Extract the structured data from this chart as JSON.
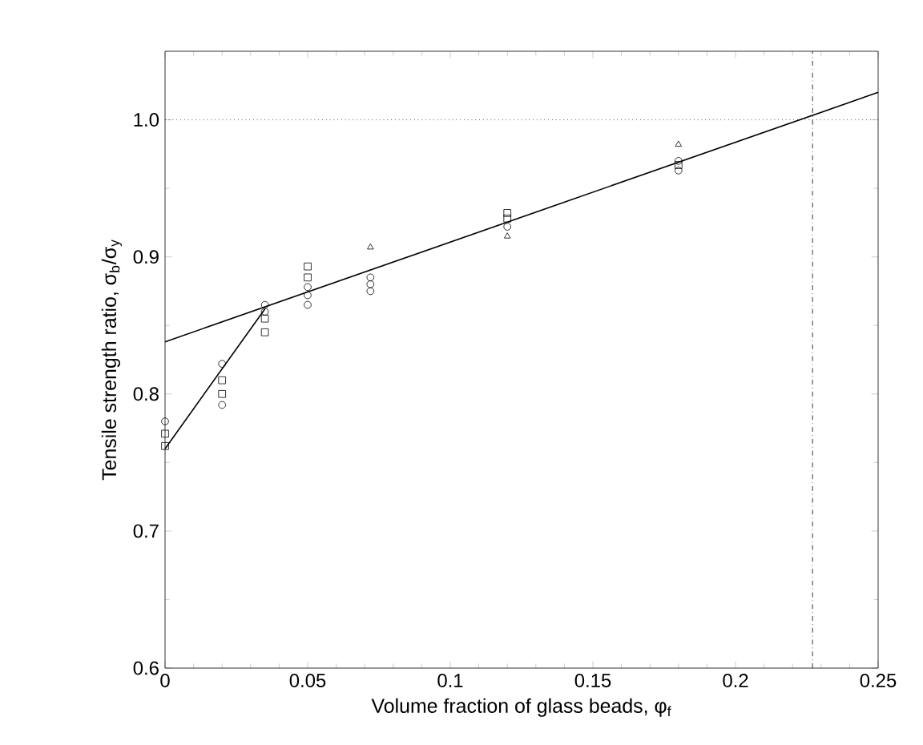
{
  "chart_data": {
    "type": "scatter",
    "xlabel": "Volume fraction of glass beads, φ$_{f}$",
    "ylabel": "Tensile strength ratio, σ$_{b}$/σ$_{y}$",
    "xlim": [
      0,
      0.25
    ],
    "ylim": [
      0.6,
      1.05
    ],
    "xticks": [
      0,
      0.05,
      0.1,
      0.15,
      0.2,
      0.25
    ],
    "yticks": [
      0.6,
      0.7,
      0.8,
      0.9,
      {
        "value": 1.0,
        "label": "1.0"
      }
    ],
    "grid": false,
    "series": [
      {
        "marker": "circle",
        "color": "#000000",
        "x": [
          0,
          0.02,
          0.02,
          0.035,
          0.035,
          0.05,
          0.05,
          0.05,
          0.072,
          0.072,
          0.072,
          0.12,
          0.18,
          0.18
        ],
        "values": [
          0.78,
          0.822,
          0.792,
          0.865,
          0.86,
          0.878,
          0.872,
          0.865,
          0.885,
          0.88,
          0.875,
          0.922,
          0.97,
          0.963
        ]
      },
      {
        "marker": "square",
        "color": "#000000",
        "x": [
          0,
          0,
          0.02,
          0.02,
          0.035,
          0.035,
          0.05,
          0.05,
          0.12,
          0.12,
          0.18
        ],
        "values": [
          0.771,
          0.762,
          0.81,
          0.8,
          0.855,
          0.845,
          0.893,
          0.885,
          0.932,
          0.928,
          0.967
        ]
      },
      {
        "marker": "triangle",
        "color": "#000000",
        "x": [
          0.072,
          0.12,
          0.18
        ],
        "values": [
          0.907,
          0.915,
          0.982
        ]
      },
      {
        "type": "line",
        "marker": "none",
        "line_style": "solid",
        "color": "#000000",
        "x": [
          0,
          0.035
        ],
        "values": [
          0.76,
          0.862
        ]
      },
      {
        "type": "line",
        "marker": "none",
        "line_style": "solid",
        "color": "#000000",
        "x": [
          0,
          0.25
        ],
        "values": [
          0.838,
          1.02
        ]
      }
    ],
    "ref_lines": [
      {
        "axis": "y",
        "value": 1.0,
        "line_style": "dotted",
        "color": "#000000"
      },
      {
        "axis": "x",
        "value": 0.227,
        "line_style": "dashdotted",
        "color": "#000000"
      }
    ]
  }
}
